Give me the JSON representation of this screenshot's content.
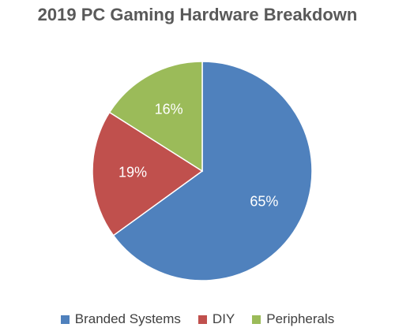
{
  "chart_data": {
    "type": "pie",
    "title": "2019 PC Gaming Hardware Breakdown",
    "categories": [
      "Branded Systems",
      "DIY",
      "Peripherals"
    ],
    "values": [
      65,
      19,
      16
    ],
    "labels": [
      "65%",
      "19%",
      "16%"
    ],
    "colors": [
      "#4F81BD",
      "#C0504D",
      "#9BBB59"
    ],
    "legend_position": "bottom",
    "start_angle": "12 o'clock",
    "direction": "clockwise"
  }
}
